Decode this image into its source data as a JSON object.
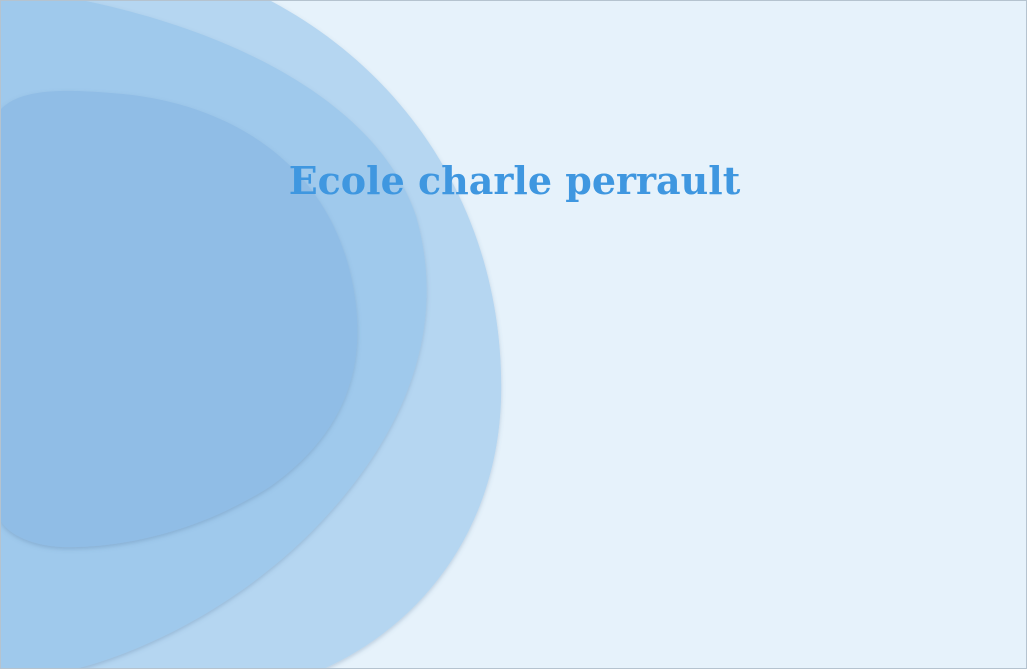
{
  "slide": {
    "title": "Ecole charle perrault"
  },
  "colors": {
    "background": "#e6f2fb",
    "outer_blob": "#b5d6f1",
    "middle_blob": "#9fc9ec",
    "inner_blob": "#90bde6",
    "title_text": "#3f97e0"
  }
}
